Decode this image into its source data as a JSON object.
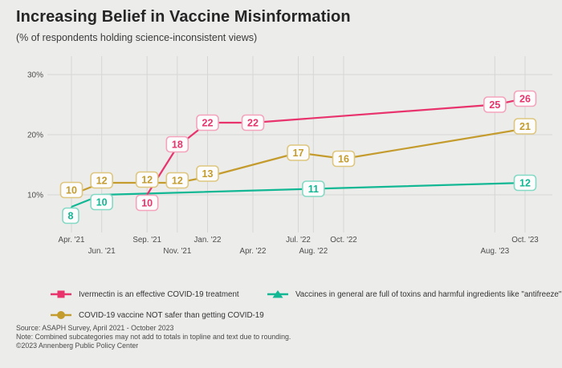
{
  "title": "Increasing Belief in Vaccine Misinformation",
  "subtitle": "(% of respondents holding science-inconsistent views)",
  "colors": {
    "background": "#ECECEB",
    "gridline": "#D6D6D6",
    "ivermectin_pink": "#E8336D",
    "ivermectin_border": "#F4A3BC",
    "vaccine_gold": "#C49B2D",
    "vaccine_gold_border": "#DEC67E",
    "toxins_teal": "#12B794",
    "toxins_teal_border": "#84D9C5",
    "axis_text": "#4C4C4C",
    "label_box_fill": "#FCFCFC"
  },
  "chart_data": {
    "type": "line",
    "title": "Increasing Belief in Vaccine Misinformation",
    "ylabel": "% of respondents",
    "ylim": [
      4,
      32
    ],
    "grid": true,
    "legend_position": "bottom",
    "y_ticks": [
      {
        "label": "10%",
        "value": 10
      },
      {
        "label": "20%",
        "value": 20
      },
      {
        "label": "30%",
        "value": 30
      }
    ],
    "x_ticks": [
      {
        "label": "Apr. '21",
        "m": 0
      },
      {
        "label": "Jun. '21",
        "m": 2
      },
      {
        "label": "Sep. '21",
        "m": 5
      },
      {
        "label": "Nov. '21",
        "m": 7
      },
      {
        "label": "Jan. '22",
        "m": 9
      },
      {
        "label": "Apr. '22",
        "m": 12
      },
      {
        "label": "Jul. '22",
        "m": 15
      },
      {
        "label": "Aug. '22",
        "m": 16
      },
      {
        "label": "Oct. '22",
        "m": 18
      },
      {
        "label": "Aug. '23",
        "m": 28
      },
      {
        "label": "Oct. '23",
        "m": 30
      }
    ],
    "series": [
      {
        "name": "Ivermectin is an effective COVID-19 treatment",
        "marker": "square",
        "color": "#E8336D",
        "border": "#F4A3BC",
        "points": [
          {
            "x": "Sep. '21",
            "m": 5,
            "v": 10,
            "dy": 10
          },
          {
            "x": "Nov. '21",
            "m": 7,
            "v": 18,
            "dy": -3
          },
          {
            "x": "Jan. '22",
            "m": 9,
            "v": 22
          },
          {
            "x": "Apr. '22",
            "m": 12,
            "v": 22
          },
          {
            "x": "Aug. '23",
            "m": 28,
            "v": 25
          },
          {
            "x": "Oct. '23",
            "m": 30,
            "v": 26
          }
        ]
      },
      {
        "name": "COVID-19 vaccine NOT safer than getting COVID-19",
        "marker": "circle",
        "color": "#C49B2D",
        "border": "#DEC67E",
        "points": [
          {
            "x": "Apr. '21",
            "m": 0,
            "v": 10,
            "dy": -6
          },
          {
            "x": "Jun. '21",
            "m": 2,
            "v": 12,
            "dy": -3
          },
          {
            "x": "Sep. '21",
            "m": 5,
            "v": 12,
            "dy": -4
          },
          {
            "x": "Nov. '21",
            "m": 7,
            "v": 12,
            "dy": -3
          },
          {
            "x": "Jan. '22",
            "m": 9,
            "v": 13,
            "dy": -4
          },
          {
            "x": "Jul. '22",
            "m": 15,
            "v": 17
          },
          {
            "x": "Oct. '22",
            "m": 18,
            "v": 16
          },
          {
            "x": "Oct. '23",
            "m": 30,
            "v": 21,
            "dy": -3
          }
        ]
      },
      {
        "name": "Vaccines in general are full of toxins and harmful ingredients like \"antifreeze\"",
        "marker": "triangle",
        "color": "#12B794",
        "border": "#84D9C5",
        "points": [
          {
            "x": "Apr. '21",
            "m": 0,
            "v": 8,
            "dy": 11,
            "dx": -1
          },
          {
            "x": "Jun. '21",
            "m": 2,
            "v": 10,
            "dy": 9
          },
          {
            "x": "Aug. '22",
            "m": 16,
            "v": 11
          },
          {
            "x": "Oct. '23",
            "m": 30,
            "v": 12
          }
        ]
      }
    ]
  },
  "legend": {
    "items": [
      {
        "label": "Ivermectin is an effective COVID-19 treatment"
      },
      {
        "label": "Vaccines in general are full of toxins and harmful ingredients like \"antifreeze\""
      },
      {
        "label": "COVID-19 vaccine NOT safer than getting COVID-19"
      }
    ]
  },
  "footer": {
    "source": "Source: ASAPH Survey, April 2021 - October 2023",
    "note": "Note: Combined subcategories may not add to totals in topline and text due to rounding.",
    "copyright": "©2023 Annenberg Public Policy Center"
  }
}
